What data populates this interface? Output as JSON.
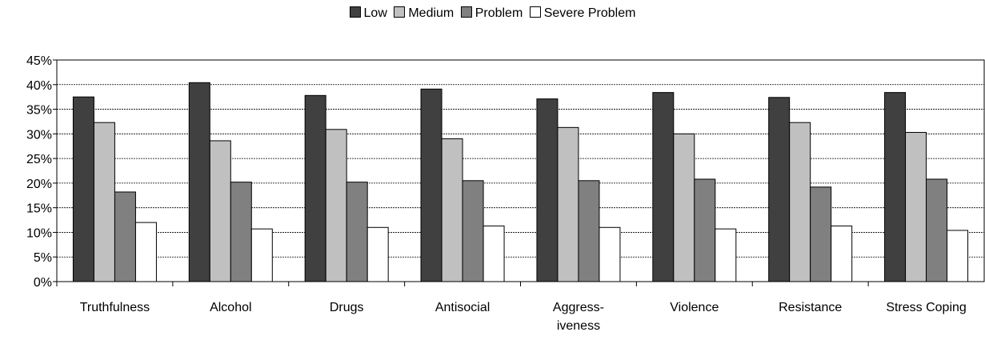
{
  "chart_data": {
    "type": "bar",
    "categories": [
      "Truthfulness",
      "Alcohol",
      "Drugs",
      "Antisocial",
      "Aggress-\niveness",
      "Violence",
      "Resistance",
      "Stress Coping"
    ],
    "series": [
      {
        "name": "Low",
        "color": "#404040",
        "values": [
          37.5,
          40.4,
          37.8,
          39.1,
          37.1,
          38.4,
          37.4,
          38.4
        ]
      },
      {
        "name": "Medium",
        "color": "#c0c0c0",
        "values": [
          32.3,
          28.6,
          30.9,
          29.0,
          31.3,
          30.0,
          32.3,
          30.3
        ]
      },
      {
        "name": "Problem",
        "color": "#808080",
        "values": [
          18.2,
          20.2,
          20.2,
          20.5,
          20.5,
          20.8,
          19.2,
          20.8
        ]
      },
      {
        "name": "Severe Problem",
        "color": "#ffffff",
        "values": [
          12.0,
          10.7,
          11.0,
          11.3,
          11.0,
          10.7,
          11.3,
          10.4
        ]
      }
    ],
    "y_ticks": [
      "0%",
      "5%",
      "10%",
      "15%",
      "20%",
      "25%",
      "30%",
      "35%",
      "40%",
      "45%"
    ],
    "ylim": [
      0,
      45
    ],
    "grid": true,
    "legend_position": "top"
  }
}
